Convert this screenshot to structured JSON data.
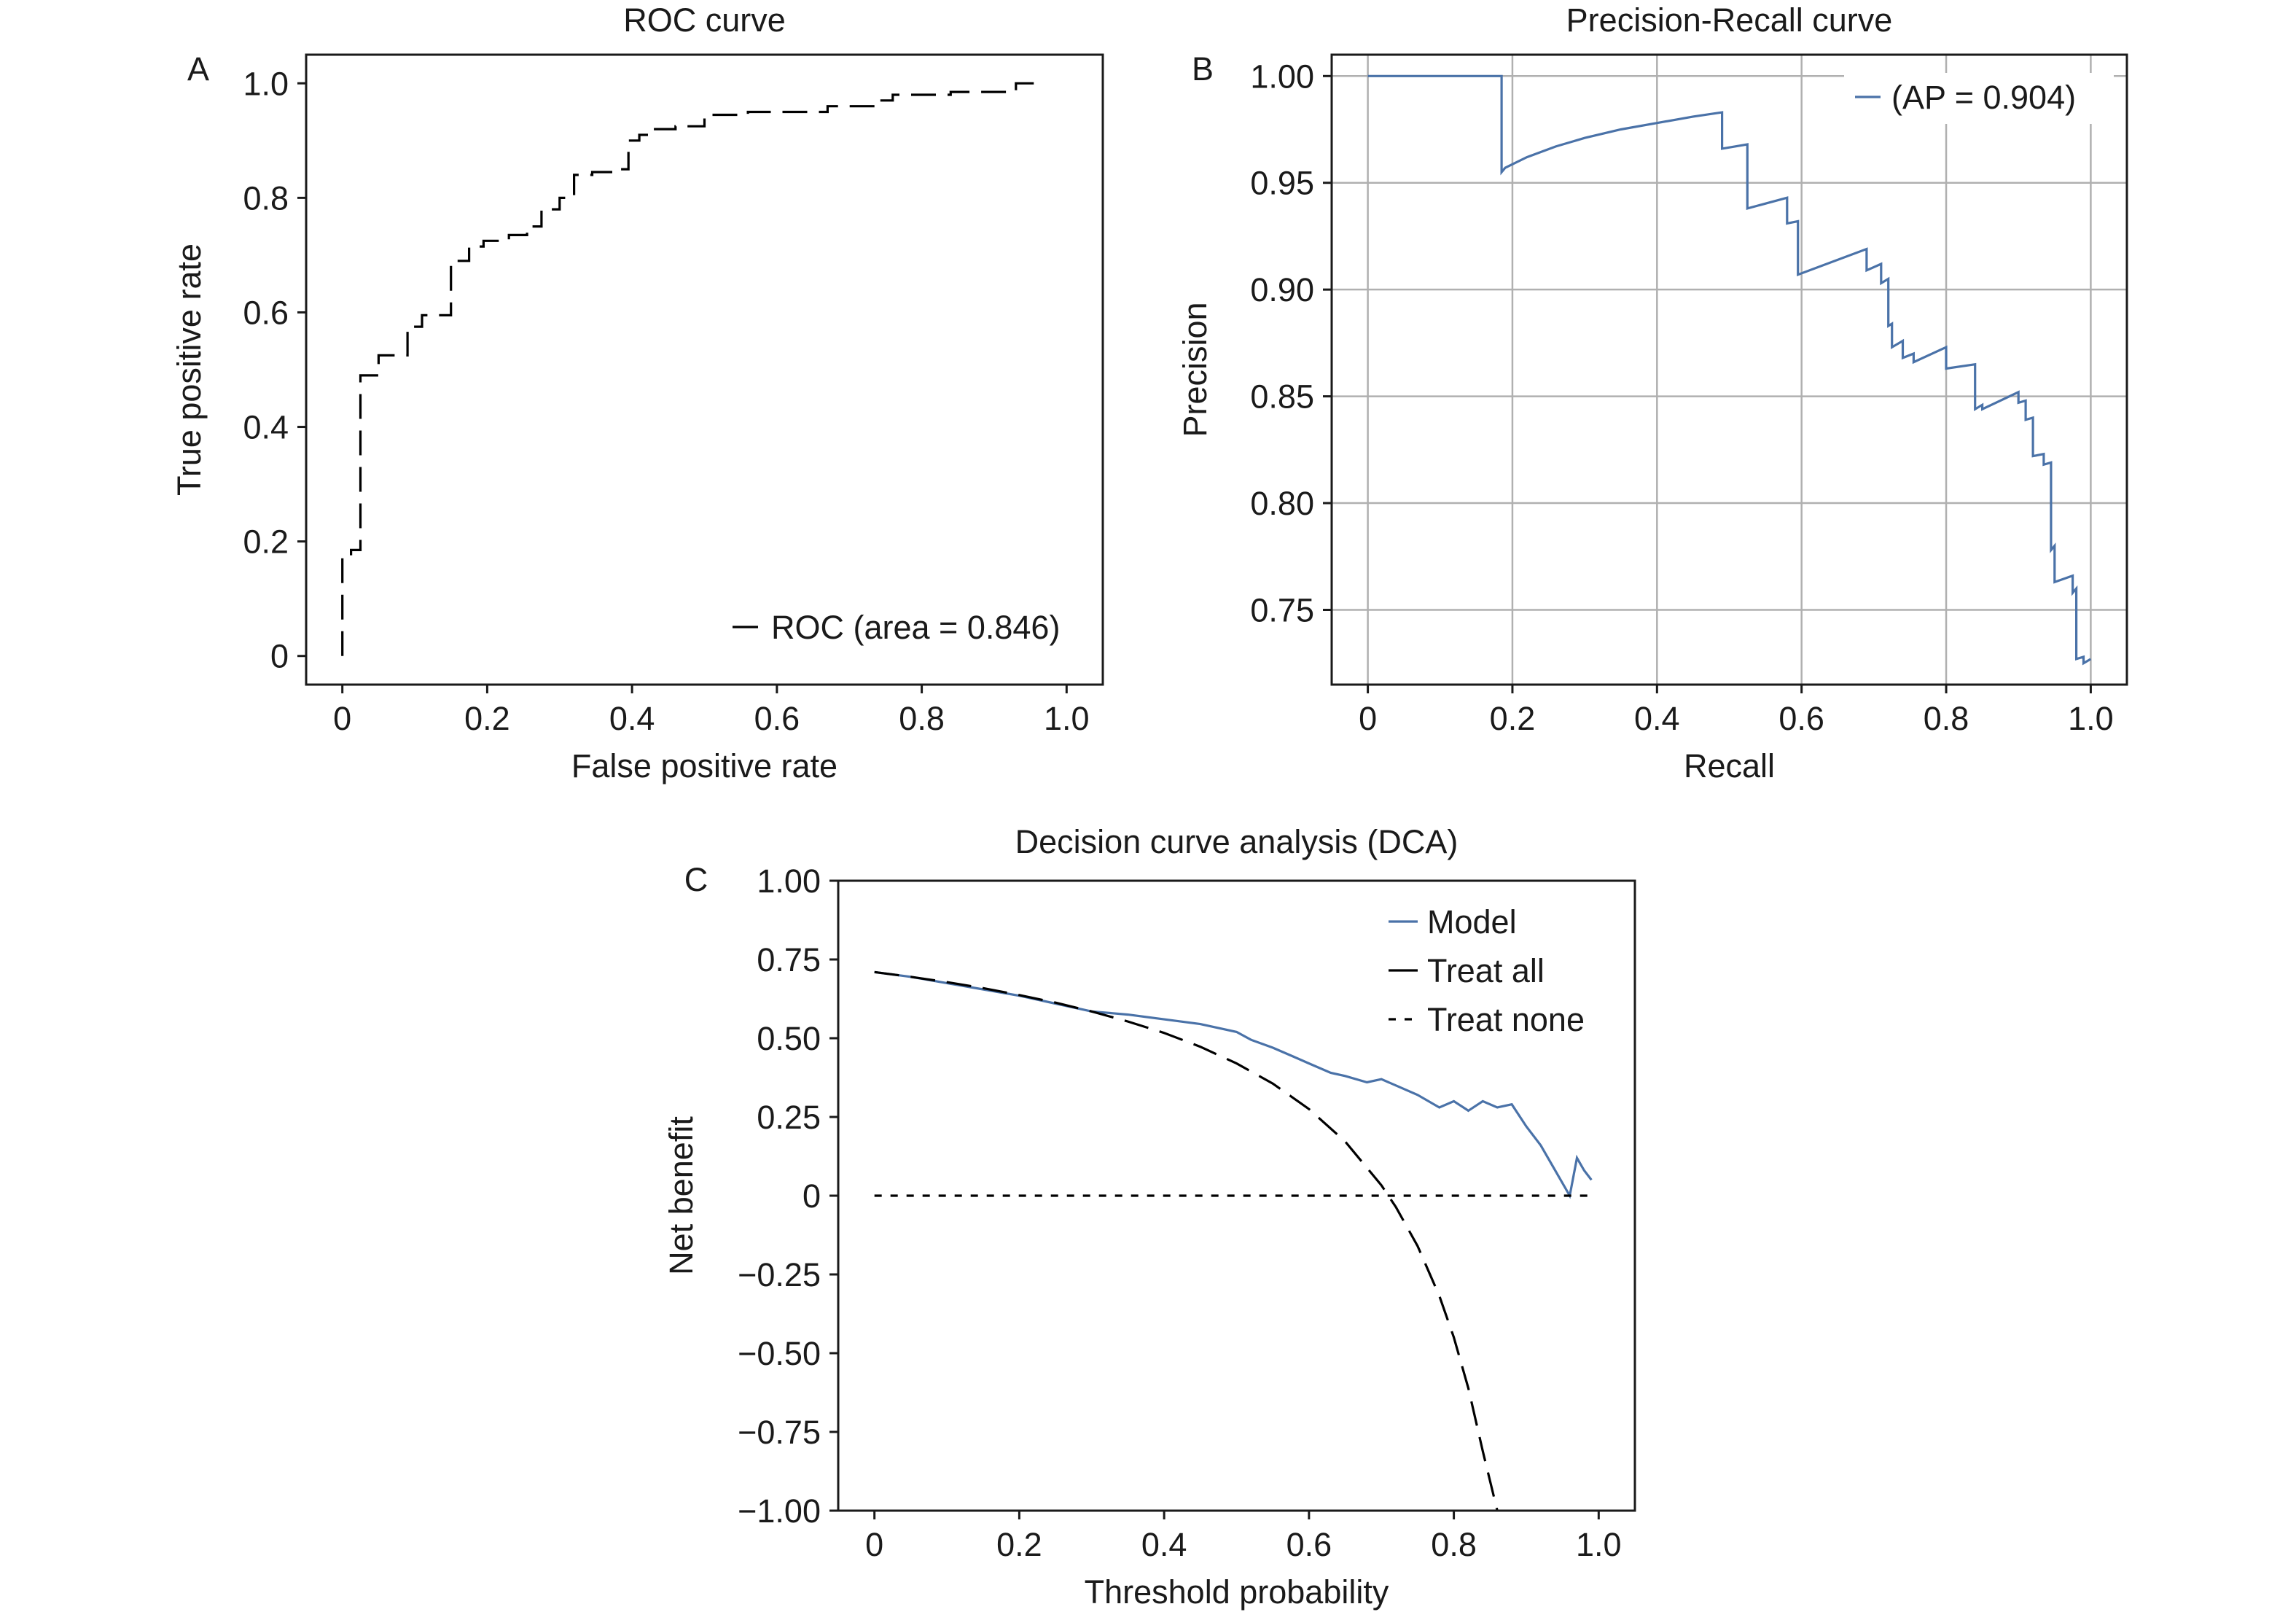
{
  "chart_data": [
    {
      "panel": "A",
      "type": "line",
      "title": "ROC curve",
      "xlabel": "False positive rate",
      "ylabel": "True positive rate",
      "xlim": [
        -0.05,
        1.05
      ],
      "ylim": [
        -0.05,
        1.05
      ],
      "xticks": [
        0,
        0.2,
        0.4,
        0.6,
        0.8,
        1.0
      ],
      "xtick_labels": [
        "0",
        "0.2",
        "0.4",
        "0.6",
        "0.8",
        "1.0"
      ],
      "yticks": [
        0,
        0.2,
        0.4,
        0.6,
        0.8,
        1.0
      ],
      "ytick_labels": [
        "0",
        "0.2",
        "0.4",
        "0.6",
        "0.8",
        "1.0"
      ],
      "grid": false,
      "legend_position": "lower-right",
      "series": [
        {
          "name": "ROC (area = 0.846)",
          "color": "#000000",
          "dash": "long-dash",
          "x": [
            0,
            0,
            0.012,
            0.012,
            0.025,
            0.025,
            0.05,
            0.05,
            0.09,
            0.09,
            0.11,
            0.11,
            0.15,
            0.15,
            0.175,
            0.175,
            0.195,
            0.195,
            0.23,
            0.23,
            0.255,
            0.255,
            0.275,
            0.275,
            0.3,
            0.3,
            0.32,
            0.32,
            0.345,
            0.345,
            0.375,
            0.375,
            0.395,
            0.395,
            0.41,
            0.41,
            0.43,
            0.43,
            0.46,
            0.46,
            0.5,
            0.5,
            0.56,
            0.56,
            0.67,
            0.67,
            0.74,
            0.74,
            0.76,
            0.76,
            0.84,
            0.84,
            0.93,
            0.93,
            0.97
          ],
          "y": [
            0,
            0.175,
            0.175,
            0.185,
            0.185,
            0.49,
            0.49,
            0.525,
            0.525,
            0.575,
            0.575,
            0.595,
            0.595,
            0.69,
            0.69,
            0.715,
            0.715,
            0.725,
            0.725,
            0.735,
            0.735,
            0.75,
            0.75,
            0.78,
            0.78,
            0.8,
            0.8,
            0.84,
            0.84,
            0.845,
            0.845,
            0.85,
            0.85,
            0.9,
            0.9,
            0.91,
            0.91,
            0.92,
            0.92,
            0.925,
            0.925,
            0.945,
            0.945,
            0.95,
            0.95,
            0.96,
            0.96,
            0.97,
            0.97,
            0.98,
            0.98,
            0.985,
            0.985,
            1.0,
            1.0
          ]
        }
      ]
    },
    {
      "panel": "B",
      "type": "line",
      "title": "Precision-Recall curve",
      "xlabel": "Recall",
      "ylabel": "Precision",
      "xlim": [
        -0.05,
        1.05
      ],
      "ylim": [
        0.715,
        1.01
      ],
      "xticks": [
        0,
        0.2,
        0.4,
        0.6,
        0.8,
        1.0
      ],
      "xtick_labels": [
        "0",
        "0.2",
        "0.4",
        "0.6",
        "0.8",
        "1.0"
      ],
      "yticks": [
        0.75,
        0.8,
        0.85,
        0.9,
        0.95,
        1.0
      ],
      "ytick_labels": [
        "0.75",
        "0.80",
        "0.85",
        "0.90",
        "0.95",
        "1.00"
      ],
      "grid": true,
      "legend_position": "top-right",
      "series": [
        {
          "name": "(AP = 0.904)",
          "color": "#4a72a8",
          "dash": "solid",
          "x": [
            0,
            0.185,
            0.185,
            0.19,
            0.22,
            0.26,
            0.3,
            0.35,
            0.4,
            0.45,
            0.49,
            0.49,
            0.525,
            0.525,
            0.58,
            0.58,
            0.595,
            0.595,
            0.69,
            0.69,
            0.71,
            0.71,
            0.72,
            0.72,
            0.725,
            0.725,
            0.74,
            0.74,
            0.755,
            0.755,
            0.8,
            0.8,
            0.84,
            0.84,
            0.85,
            0.85,
            0.9,
            0.9,
            0.91,
            0.91,
            0.92,
            0.92,
            0.935,
            0.935,
            0.945,
            0.945,
            0.95,
            0.95,
            0.975,
            0.975,
            0.98,
            0.98,
            0.99,
            0.99,
            1.0
          ],
          "y": [
            1.0,
            1.0,
            0.955,
            0.957,
            0.962,
            0.967,
            0.971,
            0.975,
            0.978,
            0.981,
            0.983,
            0.966,
            0.968,
            0.938,
            0.943,
            0.931,
            0.932,
            0.907,
            0.919,
            0.909,
            0.912,
            0.903,
            0.905,
            0.883,
            0.884,
            0.873,
            0.876,
            0.868,
            0.87,
            0.866,
            0.873,
            0.863,
            0.865,
            0.844,
            0.846,
            0.844,
            0.852,
            0.847,
            0.848,
            0.839,
            0.84,
            0.822,
            0.823,
            0.818,
            0.819,
            0.778,
            0.78,
            0.763,
            0.766,
            0.758,
            0.76,
            0.727,
            0.728,
            0.725,
            0.727
          ]
        }
      ]
    },
    {
      "panel": "C",
      "type": "line",
      "title": "Decision curve analysis (DCA)",
      "xlabel": "Threshold probability",
      "ylabel": "Net benefit",
      "xlim": [
        -0.05,
        1.05
      ],
      "ylim": [
        -1.0,
        1.0
      ],
      "xticks": [
        0,
        0.2,
        0.4,
        0.6,
        0.8,
        1.0
      ],
      "xtick_labels": [
        "0",
        "0.2",
        "0.4",
        "0.6",
        "0.8",
        "1.0"
      ],
      "yticks": [
        -1.0,
        -0.75,
        -0.5,
        -0.25,
        0,
        0.25,
        0.5,
        0.75,
        1.0
      ],
      "ytick_labels": [
        "−1.00",
        "−0.75",
        "−0.50",
        "−0.25",
        "0",
        "0.25",
        "0.50",
        "0.75",
        "1.00"
      ],
      "grid": false,
      "legend_position": "top-right",
      "series": [
        {
          "name": "Model",
          "color": "#4a72a8",
          "dash": "solid",
          "x": [
            0,
            0.05,
            0.1,
            0.15,
            0.2,
            0.25,
            0.3,
            0.35,
            0.4,
            0.45,
            0.5,
            0.52,
            0.55,
            0.58,
            0.6,
            0.63,
            0.65,
            0.68,
            0.7,
            0.72,
            0.75,
            0.78,
            0.8,
            0.82,
            0.84,
            0.86,
            0.88,
            0.9,
            0.92,
            0.94,
            0.96,
            0.97,
            0.98,
            0.99
          ],
          "y": [
            0.71,
            0.695,
            0.675,
            0.655,
            0.635,
            0.61,
            0.585,
            0.575,
            0.56,
            0.545,
            0.52,
            0.495,
            0.47,
            0.44,
            0.42,
            0.39,
            0.38,
            0.36,
            0.37,
            0.35,
            0.32,
            0.28,
            0.3,
            0.27,
            0.3,
            0.28,
            0.29,
            0.22,
            0.16,
            0.08,
            0.0,
            0.12,
            0.08,
            0.05
          ]
        },
        {
          "name": "Treat all",
          "color": "#000000",
          "dash": "long-dash",
          "x": [
            0,
            0.05,
            0.1,
            0.15,
            0.2,
            0.25,
            0.3,
            0.35,
            0.4,
            0.45,
            0.5,
            0.55,
            0.6,
            0.65,
            0.7,
            0.72,
            0.75,
            0.78,
            0.8,
            0.82,
            0.84,
            0.86
          ],
          "y": [
            0.71,
            0.695,
            0.678,
            0.659,
            0.637,
            0.613,
            0.585,
            0.553,
            0.517,
            0.473,
            0.42,
            0.356,
            0.275,
            0.172,
            0.033,
            -0.036,
            -0.16,
            -0.318,
            -0.45,
            -0.611,
            -0.811,
            -1.0
          ]
        },
        {
          "name": "Treat none",
          "color": "#000000",
          "dash": "short-dash",
          "x": [
            0,
            0.99
          ],
          "y": [
            0,
            0
          ]
        }
      ]
    }
  ],
  "figure": {
    "panel_letters": [
      "A",
      "B",
      "C"
    ]
  }
}
